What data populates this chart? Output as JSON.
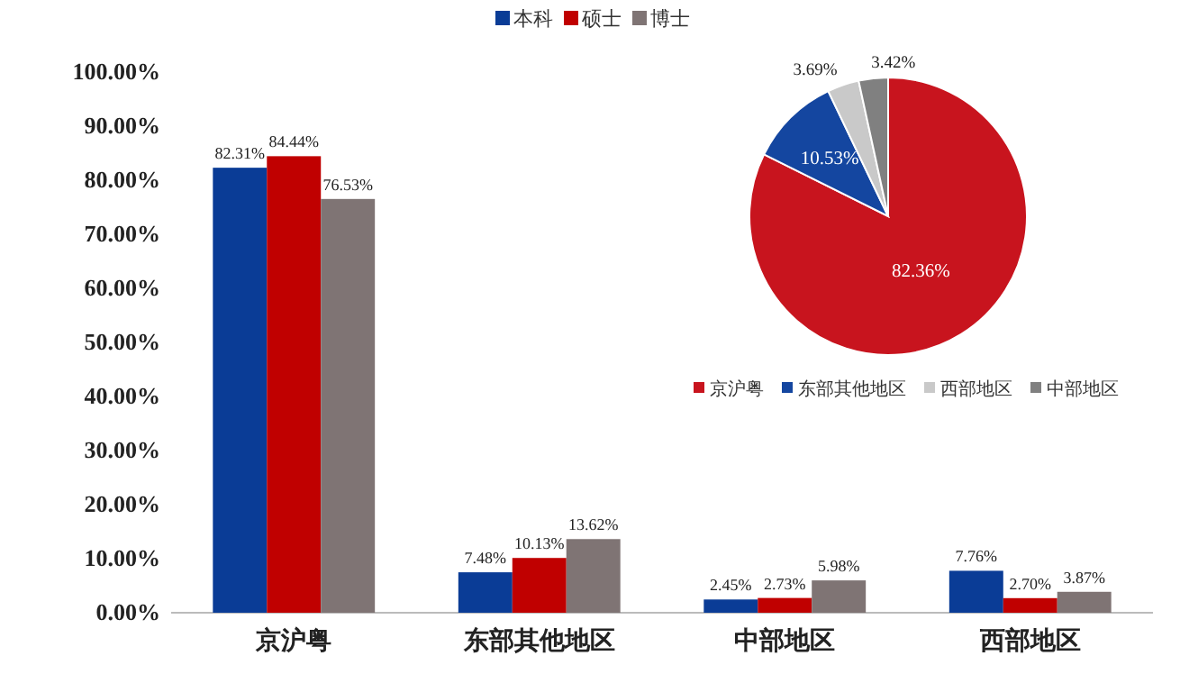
{
  "chart_data": [
    {
      "type": "bar",
      "categories": [
        "京沪粤",
        "东部其他地区",
        "中部地区",
        "西部地区"
      ],
      "series": [
        {
          "name": "本科",
          "color": "#0a3c96",
          "values": [
            82.31,
            7.48,
            2.45,
            7.76
          ],
          "value_labels": [
            "82.31%",
            "7.48%",
            "2.45%",
            "7.76%"
          ]
        },
        {
          "name": "硕士",
          "color": "#c00000",
          "values": [
            84.44,
            10.13,
            2.73,
            2.7
          ],
          "value_labels": [
            "84.44%",
            "10.13%",
            "2.73%",
            "2.70%"
          ]
        },
        {
          "name": "博士",
          "color": "#7f7474",
          "values": [
            76.53,
            13.62,
            5.98,
            3.87
          ],
          "value_labels": [
            "76.53%",
            "13.62%",
            "5.98%",
            "3.87%"
          ]
        }
      ],
      "ylim": [
        0,
        100
      ],
      "yticks": [
        {
          "value": 0,
          "label": "0.00%"
        },
        {
          "value": 10,
          "label": "10.00%"
        },
        {
          "value": 20,
          "label": "20.00%"
        },
        {
          "value": 30,
          "label": "30.00%"
        },
        {
          "value": 40,
          "label": "40.00%"
        },
        {
          "value": 50,
          "label": "50.00%"
        },
        {
          "value": 60,
          "label": "60.00%"
        },
        {
          "value": 70,
          "label": "70.00%"
        },
        {
          "value": 80,
          "label": "80.00%"
        },
        {
          "value": 90,
          "label": "90.00%"
        },
        {
          "value": 100,
          "label": "100.00%"
        }
      ],
      "legend": "top"
    },
    {
      "type": "pie",
      "categories": [
        "京沪粤",
        "东部其他地区",
        "西部地区",
        "中部地区"
      ],
      "values": [
        82.36,
        10.53,
        3.69,
        3.42
      ],
      "colors": [
        "#c8141e",
        "#1446a0",
        "#c9c9c9",
        "#808080"
      ],
      "value_labels": [
        "82.36%",
        "10.53%",
        "3.69%",
        "3.42%"
      ],
      "legend": "bottom"
    }
  ]
}
